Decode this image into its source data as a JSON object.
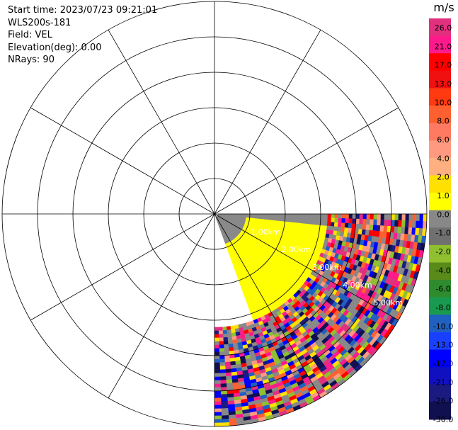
{
  "header": {
    "start_time": "Start time: 2023/07/23 09:21:01",
    "instrument": "WLS200s-181",
    "field": "Field: VEL",
    "elevation": "Elevation(deg): 0.00",
    "nrays": "NRays: 90"
  },
  "chart_data": {
    "type": "heatmap",
    "subtype": "radar-ppi",
    "field": "VEL",
    "units_label": "m/s",
    "azimuth_range_deg": [
      90,
      180
    ],
    "range_km": [
      0,
      6
    ],
    "range_rings_km": [
      1,
      2,
      3,
      4,
      5,
      6
    ],
    "radial_lines_every_deg": 30,
    "range_ring_labels": [
      "1.00km",
      "2.00km",
      "3.00km",
      "4.00km",
      "5.00km"
    ],
    "colorbar": {
      "label": "m/s",
      "min": -30.0,
      "max": 30.0,
      "tick_labels": [
        "26.0",
        "21.0",
        "17.0",
        "13.0",
        "10.0",
        "8.0",
        "6.0",
        "4.0",
        "2.0",
        "1.0",
        "0.0",
        "-1.0",
        "-2.0",
        "-4.0",
        "-6.0",
        "-8.0",
        "-10.0",
        "-13.0",
        "-17.0",
        "-21.0",
        "-26.0",
        "-30.0"
      ],
      "colors": [
        "#e0307e",
        "#ff1a8c",
        "#ff0000",
        "#f01010",
        "#ff3a10",
        "#ff6030",
        "#ff7a60",
        "#ff9a80",
        "#ffb080",
        "#ffe000",
        "#ffff00",
        "#888888",
        "#707070",
        "#90c030",
        "#5a8a1a",
        "#2e8b2e",
        "#1a9a50",
        "#2060c0",
        "#1a40ff",
        "#0000ff",
        "#1010c0",
        "#1a1a80",
        "#101050"
      ]
    },
    "regions": [
      {
        "az_start": 90,
        "az_end": 160,
        "r_start_km": 0.1,
        "r_end_km": 0.9,
        "value": 0.0
      },
      {
        "az_start": 96,
        "az_end": 160,
        "r_start_km": 0.9,
        "r_end_km": 3.2,
        "value": 3.0
      },
      {
        "az_start": 90,
        "az_end": 96,
        "r_start_km": 0.9,
        "r_end_km": 3.2,
        "value": 0.0
      },
      {
        "az_start": 90,
        "az_end": 180,
        "r_start_km": 3.2,
        "r_end_km": 6.0,
        "value": "noise"
      }
    ]
  }
}
